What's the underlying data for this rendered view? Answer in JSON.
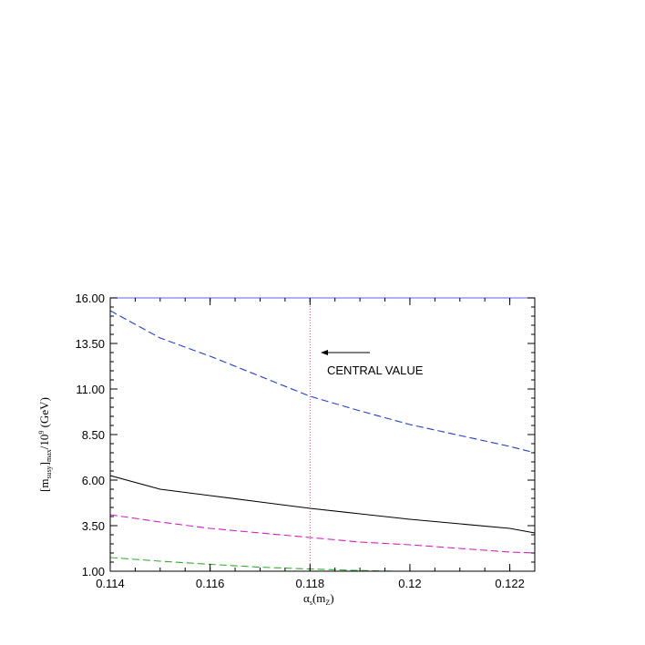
{
  "chart_data": {
    "type": "line",
    "xlabel": {
      "main": "α",
      "sub1": "s",
      "mid": "(m",
      "sub2": "Z",
      "end": ")"
    },
    "ylabel": {
      "open": "[m",
      "sub1": "susy",
      "mid": "]",
      "sub2": "max",
      "slash": "/10",
      "sup": "9",
      "end": " (GeV)"
    },
    "xlim": [
      0.114,
      0.1225
    ],
    "ylim": [
      1.0,
      16.0
    ],
    "x_ticks": [
      "0.114",
      "0.116",
      "0.118",
      "0.12",
      "0.122"
    ],
    "x_tick_values": [
      0.114,
      0.116,
      0.118,
      0.12,
      0.122
    ],
    "y_ticks": [
      "1.00",
      "3.50",
      "6.00",
      "8.50",
      "11.00",
      "13.50",
      "16.00"
    ],
    "y_tick_values": [
      1.0,
      3.5,
      6.0,
      8.5,
      11.0,
      13.5,
      16.0
    ],
    "series": [
      {
        "style": "dashed",
        "color": "#1f3fd0",
        "x": [
          0.114,
          0.115,
          0.116,
          0.117,
          0.118,
          0.119,
          0.12,
          0.121,
          0.122,
          0.1225
        ],
        "y": [
          15.3,
          13.8,
          12.8,
          11.7,
          10.6,
          9.8,
          9.05,
          8.45,
          7.85,
          7.5
        ]
      },
      {
        "style": "solid",
        "color": "#000000",
        "x": [
          0.114,
          0.115,
          0.116,
          0.117,
          0.118,
          0.119,
          0.12,
          0.121,
          0.122,
          0.1225
        ],
        "y": [
          6.25,
          5.5,
          5.15,
          4.8,
          4.45,
          4.15,
          3.85,
          3.6,
          3.35,
          3.1
        ]
      },
      {
        "style": "dashed",
        "color": "#d020c0",
        "x": [
          0.114,
          0.115,
          0.116,
          0.117,
          0.118,
          0.119,
          0.12,
          0.121,
          0.122,
          0.1225
        ],
        "y": [
          4.1,
          3.7,
          3.35,
          3.1,
          2.85,
          2.6,
          2.45,
          2.25,
          2.05,
          2.0
        ]
      },
      {
        "style": "dashed",
        "color": "#30b030",
        "x": [
          0.114,
          0.115,
          0.116,
          0.117,
          0.118,
          0.119,
          0.12
        ],
        "y": [
          1.75,
          1.55,
          1.38,
          1.22,
          1.12,
          1.04,
          0.98
        ]
      }
    ],
    "vline": {
      "x": 0.118,
      "color": "#e02040",
      "style": "dotted"
    },
    "annotation": {
      "text": "CENTRAL VALUE",
      "arrow": "left"
    },
    "grid": false,
    "frame_color": "#7f7fff"
  }
}
